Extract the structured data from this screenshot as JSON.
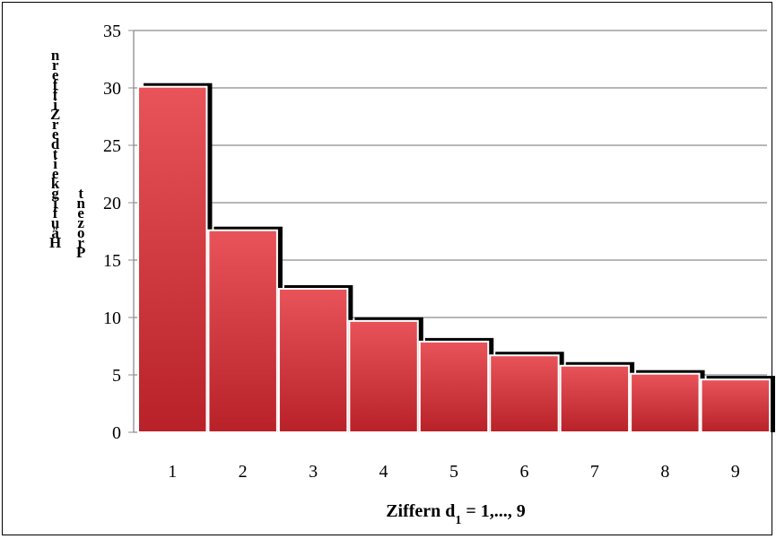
{
  "chart_data": {
    "type": "bar",
    "categories": [
      "1",
      "2",
      "3",
      "4",
      "5",
      "6",
      "7",
      "8",
      "9"
    ],
    "values": [
      30.1,
      17.6,
      12.5,
      9.7,
      7.9,
      6.7,
      5.8,
      5.1,
      4.6
    ],
    "xlabel": "Ziffern d",
    "xlabel_sub": "1",
    "xlabel_suffix": " = 1,..., 9",
    "ylabel_line1": "Häufigkeit der Ziffern",
    "ylabel_line2": "Prozent",
    "ylim": [
      0,
      35
    ],
    "yticks": [
      0,
      5,
      10,
      15,
      20,
      25,
      30,
      35
    ],
    "grid": true,
    "legend": "none",
    "colors": {
      "bar_top": "#e8545a",
      "bar_bottom": "#b82128",
      "grid": "#8c8c8c",
      "shadow": "#000000"
    }
  }
}
